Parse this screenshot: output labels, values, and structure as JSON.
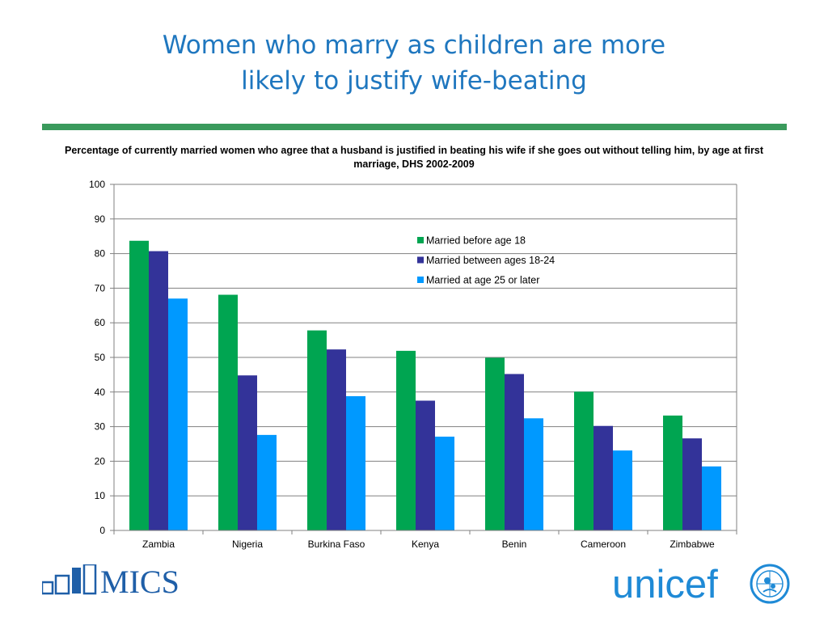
{
  "slide": {
    "title_line1": "Women who marry as children are more",
    "title_line2": "likely to justify wife-beating"
  },
  "colors": {
    "title": "#1f77bf",
    "rule": "#3a9a5c",
    "series": [
      "#00a551",
      "#333399",
      "#0099ff"
    ],
    "grid": "#808080",
    "mics": "#1f5fa8",
    "unicef": "#1f8ad6"
  },
  "logos": {
    "mics_text": "MICS",
    "unicef_text": "unicef"
  },
  "chart_data": {
    "type": "bar",
    "title": "Percentage of currently married women who agree that a husband is justified in beating his wife if she goes out without telling him, by age at first marriage, DHS 2002-2009",
    "categories": [
      "Zambia",
      "Nigeria",
      "Burkina Faso",
      "Kenya",
      "Benin",
      "Cameroon",
      "Zimbabwe"
    ],
    "series": [
      {
        "name": "Married before age 18",
        "values": [
          83.7,
          68.1,
          57.8,
          51.9,
          49.9,
          40.1,
          33.2
        ]
      },
      {
        "name": "Married between ages 18-24",
        "values": [
          80.7,
          44.8,
          52.3,
          37.5,
          45.2,
          30.2,
          26.6
        ]
      },
      {
        "name": "Married at age 25 or later",
        "values": [
          67.0,
          27.6,
          38.8,
          27.1,
          32.4,
          23.1,
          18.5
        ]
      }
    ],
    "ylim": [
      0,
      100
    ],
    "yticks": [
      "0",
      "10",
      "20",
      "30",
      "40",
      "50",
      "60",
      "70",
      "80",
      "90",
      "100"
    ],
    "xlabel": "",
    "ylabel": "",
    "grid": true,
    "legend_position": "top-right"
  }
}
